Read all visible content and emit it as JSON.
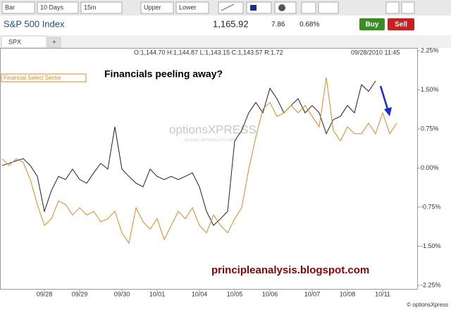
{
  "toolbar": {
    "items": [
      "Bar",
      "10 Days",
      "15m",
      "Upper",
      "Lower"
    ]
  },
  "header": {
    "title": "S&P 500 Index",
    "price": "1,165.92",
    "change": "7.86",
    "change_pct": "0.68%",
    "buy": "Buy",
    "sell": "Sell"
  },
  "tabs": {
    "add": "+"
  },
  "footer": "© optionsXpress",
  "chart_data": {
    "type": "line",
    "title": "Financials peeling away?",
    "ohlc": "O:1,144.70 H:1,144.87 L:1,143.15 C:1,143.57 R:1.72",
    "timestamp": "09/28/2010 11:45",
    "watermark": "optionsXPRESS",
    "watermark_sub": "STOCKS, OPTIONS & FUTURES",
    "annotation": "principleanalysis.blogspot.com",
    "categories": [
      null,
      null,
      null,
      null,
      null,
      null,
      "09/28",
      null,
      null,
      null,
      null,
      "09/29",
      null,
      null,
      null,
      null,
      null,
      "09/30",
      null,
      null,
      null,
      null,
      "10/01",
      null,
      null,
      null,
      null,
      null,
      "10/04",
      null,
      null,
      null,
      null,
      "10/05",
      null,
      null,
      null,
      null,
      "10/06",
      null,
      null,
      null,
      null,
      null,
      "10/07",
      null,
      null,
      null,
      null,
      "10/08",
      null,
      null,
      null,
      null,
      "10/11",
      null,
      null
    ],
    "series": [
      {
        "name": "SPX",
        "color": "#222222",
        "values": [
          0.05,
          0.09,
          0.14,
          0.18,
          0.05,
          -0.16,
          -0.83,
          -0.43,
          -0.16,
          -0.22,
          -0.02,
          -0.22,
          -0.29,
          -0.09,
          0.09,
          -0.02,
          0.79,
          -0.02,
          -0.16,
          -0.29,
          -0.36,
          -0.02,
          -0.16,
          -0.22,
          -0.16,
          -0.22,
          -0.16,
          -0.09,
          -0.36,
          -0.83,
          -1.1,
          -0.97,
          -0.83,
          0.52,
          0.72,
          1.06,
          1.26,
          1.06,
          1.53,
          1.33,
          1.06,
          1.2,
          1.33,
          1.06,
          1.2,
          1.06,
          0.66,
          0.93,
          0.99,
          1.2,
          1.06,
          1.6,
          1.47,
          1.67,
          null,
          null,
          null
        ]
      },
      {
        "name": "Financial Select Sector",
        "color": "#d98a2b",
        "values": [
          0.18,
          0.05,
          0.18,
          0.11,
          -0.22,
          -0.7,
          -1.1,
          -0.97,
          -0.63,
          -0.7,
          -0.9,
          -0.76,
          -0.9,
          -0.83,
          -1.03,
          -0.97,
          -0.83,
          -1.24,
          -1.44,
          -0.76,
          -1.03,
          -1.17,
          -0.97,
          -1.37,
          -1.1,
          -0.83,
          -0.97,
          -0.76,
          -1.1,
          -1.24,
          -0.9,
          -1.1,
          -1.24,
          -0.97,
          -0.76,
          -0.02,
          0.59,
          1.13,
          1.26,
          0.99,
          1.06,
          1.2,
          1.06,
          1.2,
          0.99,
          0.79,
          1.74,
          0.72,
          0.52,
          0.79,
          0.66,
          0.66,
          0.86,
          0.66,
          1.06,
          0.66,
          0.86
        ]
      }
    ],
    "ylim": [
      -2.25,
      2.25
    ],
    "yticks": [
      {
        "value": 2.25,
        "label": "2.25%"
      },
      {
        "value": 1.5,
        "label": "1.50%"
      },
      {
        "value": 0.75,
        "label": "0.75%"
      },
      {
        "value": 0,
        "label": "0.00%"
      },
      {
        "value": -0.75,
        "label": "-0.75%"
      },
      {
        "value": -1.5,
        "label": "-1.50%"
      },
      {
        "value": -2.25,
        "label": "-2.25%"
      }
    ]
  }
}
